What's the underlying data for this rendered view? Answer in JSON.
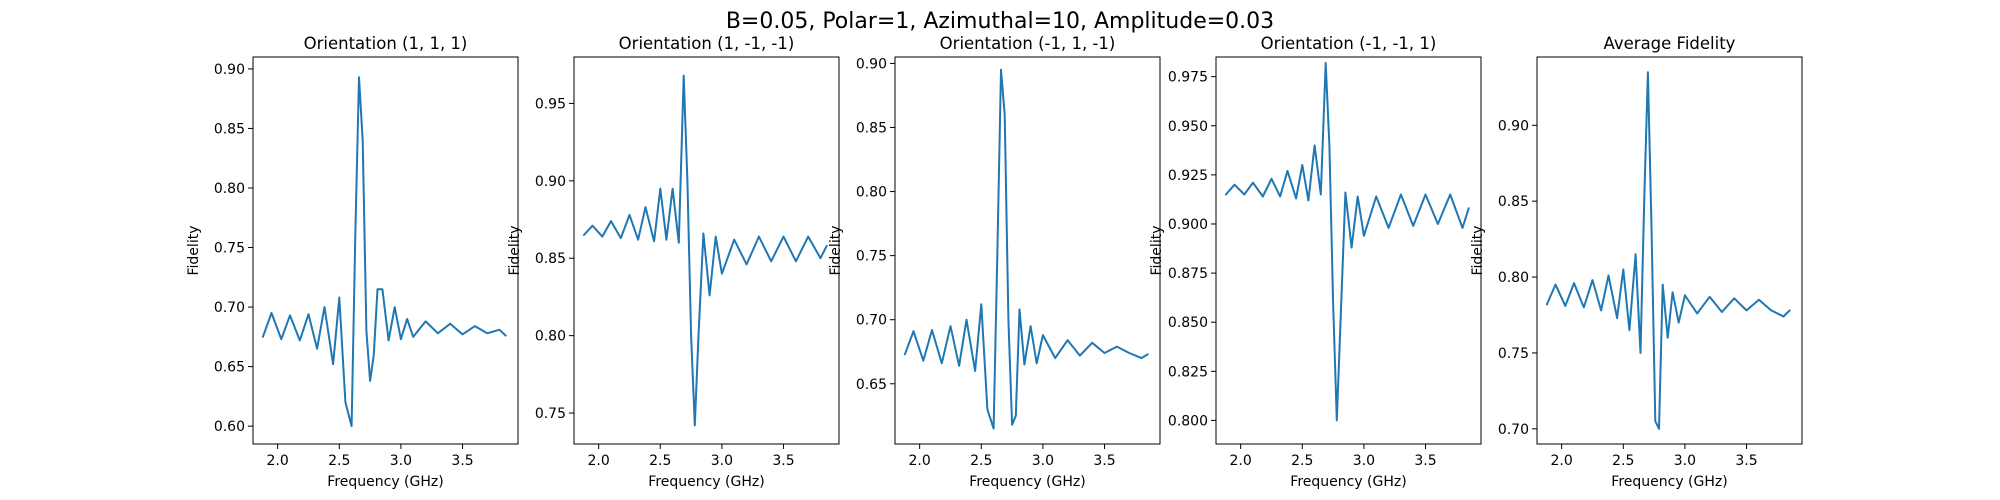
{
  "figure": {
    "suptitle": "B=0.05, Polar=1, Azimuthal=10, Amplitude=0.03"
  },
  "colors": {
    "line": "#1f77b4",
    "axis": "#000000",
    "background": "#ffffff"
  },
  "chart_data": [
    {
      "type": "line",
      "title": "Orientation (1, 1, 1)",
      "xlabel": "Frequency (GHz)",
      "ylabel": "Fidelity",
      "xlim": [
        1.8,
        3.95
      ],
      "ylim": [
        0.585,
        0.91
      ],
      "xticks": [
        2.0,
        2.5,
        3.0,
        3.5
      ],
      "xtick_labels": [
        "2.0",
        "2.5",
        "3.0",
        "3.5"
      ],
      "yticks": [
        0.6,
        0.65,
        0.7,
        0.75,
        0.8,
        0.85,
        0.9
      ],
      "ytick_labels": [
        "0.60",
        "0.65",
        "0.70",
        "0.75",
        "0.80",
        "0.85",
        "0.90"
      ],
      "grid": false,
      "x": [
        1.88,
        1.95,
        2.03,
        2.1,
        2.18,
        2.25,
        2.32,
        2.38,
        2.45,
        2.5,
        2.55,
        2.6,
        2.63,
        2.66,
        2.69,
        2.72,
        2.75,
        2.78,
        2.81,
        2.85,
        2.9,
        2.95,
        3.0,
        3.05,
        3.1,
        3.2,
        3.3,
        3.4,
        3.5,
        3.6,
        3.7,
        3.8,
        3.85
      ],
      "y": [
        0.675,
        0.695,
        0.673,
        0.693,
        0.672,
        0.694,
        0.665,
        0.7,
        0.652,
        0.708,
        0.62,
        0.6,
        0.76,
        0.893,
        0.84,
        0.68,
        0.638,
        0.66,
        0.715,
        0.715,
        0.672,
        0.7,
        0.673,
        0.69,
        0.675,
        0.688,
        0.678,
        0.686,
        0.677,
        0.684,
        0.678,
        0.681,
        0.676
      ]
    },
    {
      "type": "line",
      "title": "Orientation (1, -1, -1)",
      "xlabel": "Frequency (GHz)",
      "ylabel": "Fidelity",
      "xlim": [
        1.8,
        3.95
      ],
      "ylim": [
        0.73,
        0.98
      ],
      "xticks": [
        2.0,
        2.5,
        3.0,
        3.5
      ],
      "xtick_labels": [
        "2.0",
        "2.5",
        "3.0",
        "3.5"
      ],
      "yticks": [
        0.75,
        0.8,
        0.85,
        0.9,
        0.95
      ],
      "ytick_labels": [
        "0.75",
        "0.80",
        "0.85",
        "0.90",
        "0.95"
      ],
      "grid": false,
      "x": [
        1.88,
        1.95,
        2.03,
        2.1,
        2.18,
        2.25,
        2.32,
        2.38,
        2.45,
        2.5,
        2.55,
        2.6,
        2.65,
        2.69,
        2.72,
        2.75,
        2.78,
        2.81,
        2.85,
        2.9,
        2.95,
        3.0,
        3.1,
        3.2,
        3.3,
        3.4,
        3.5,
        3.6,
        3.7,
        3.8,
        3.85
      ],
      "y": [
        0.865,
        0.871,
        0.864,
        0.874,
        0.863,
        0.878,
        0.862,
        0.883,
        0.861,
        0.895,
        0.862,
        0.895,
        0.86,
        0.968,
        0.9,
        0.8,
        0.742,
        0.8,
        0.866,
        0.826,
        0.864,
        0.84,
        0.862,
        0.846,
        0.864,
        0.848,
        0.864,
        0.848,
        0.864,
        0.85,
        0.858
      ]
    },
    {
      "type": "line",
      "title": "Orientation (-1, 1, -1)",
      "xlabel": "Frequency (GHz)",
      "ylabel": "Fidelity",
      "xlim": [
        1.8,
        3.95
      ],
      "ylim": [
        0.603,
        0.905
      ],
      "xticks": [
        2.0,
        2.5,
        3.0,
        3.5
      ],
      "xtick_labels": [
        "2.0",
        "2.5",
        "3.0",
        "3.5"
      ],
      "yticks": [
        0.65,
        0.7,
        0.75,
        0.8,
        0.85,
        0.9
      ],
      "ytick_labels": [
        "0.65",
        "0.70",
        "0.75",
        "0.80",
        "0.85",
        "0.90"
      ],
      "grid": false,
      "x": [
        1.88,
        1.95,
        2.03,
        2.1,
        2.18,
        2.25,
        2.32,
        2.38,
        2.45,
        2.5,
        2.55,
        2.6,
        2.63,
        2.66,
        2.69,
        2.72,
        2.75,
        2.78,
        2.81,
        2.85,
        2.9,
        2.95,
        3.0,
        3.1,
        3.2,
        3.3,
        3.4,
        3.5,
        3.6,
        3.7,
        3.8,
        3.85
      ],
      "y": [
        0.673,
        0.691,
        0.668,
        0.692,
        0.666,
        0.695,
        0.664,
        0.7,
        0.66,
        0.712,
        0.63,
        0.615,
        0.75,
        0.895,
        0.86,
        0.7,
        0.618,
        0.625,
        0.708,
        0.665,
        0.695,
        0.666,
        0.688,
        0.67,
        0.684,
        0.672,
        0.682,
        0.674,
        0.679,
        0.674,
        0.67,
        0.673
      ]
    },
    {
      "type": "line",
      "title": "Orientation (-1, -1, 1)",
      "xlabel": "Frequency (GHz)",
      "ylabel": "Fidelity",
      "xlim": [
        1.8,
        3.95
      ],
      "ylim": [
        0.788,
        0.985
      ],
      "xticks": [
        2.0,
        2.5,
        3.0,
        3.5
      ],
      "xtick_labels": [
        "2.0",
        "2.5",
        "3.0",
        "3.5"
      ],
      "yticks": [
        0.8,
        0.825,
        0.85,
        0.875,
        0.9,
        0.925,
        0.95,
        0.975
      ],
      "ytick_labels": [
        "0.800",
        "0.825",
        "0.850",
        "0.875",
        "0.900",
        "0.925",
        "0.950",
        "0.975"
      ],
      "grid": false,
      "x": [
        1.88,
        1.95,
        2.03,
        2.1,
        2.18,
        2.25,
        2.32,
        2.38,
        2.45,
        2.5,
        2.55,
        2.6,
        2.65,
        2.69,
        2.72,
        2.75,
        2.78,
        2.81,
        2.85,
        2.9,
        2.95,
        3.0,
        3.1,
        3.2,
        3.3,
        3.4,
        3.5,
        3.6,
        3.7,
        3.8,
        3.85
      ],
      "y": [
        0.915,
        0.92,
        0.915,
        0.921,
        0.914,
        0.923,
        0.914,
        0.927,
        0.913,
        0.93,
        0.912,
        0.94,
        0.915,
        0.982,
        0.94,
        0.86,
        0.8,
        0.85,
        0.916,
        0.888,
        0.914,
        0.894,
        0.914,
        0.898,
        0.915,
        0.899,
        0.915,
        0.9,
        0.915,
        0.898,
        0.908
      ]
    },
    {
      "type": "line",
      "title": "Average Fidelity",
      "xlabel": "Frequency (GHz)",
      "ylabel": "Fidelity",
      "xlim": [
        1.8,
        3.95
      ],
      "ylim": [
        0.69,
        0.945
      ],
      "xticks": [
        2.0,
        2.5,
        3.0,
        3.5
      ],
      "xtick_labels": [
        "2.0",
        "2.5",
        "3.0",
        "3.5"
      ],
      "yticks": [
        0.7,
        0.75,
        0.8,
        0.85,
        0.9
      ],
      "ytick_labels": [
        "0.70",
        "0.75",
        "0.80",
        "0.85",
        "0.90"
      ],
      "grid": false,
      "x": [
        1.88,
        1.95,
        2.03,
        2.1,
        2.18,
        2.25,
        2.32,
        2.38,
        2.45,
        2.5,
        2.55,
        2.6,
        2.64,
        2.67,
        2.7,
        2.73,
        2.76,
        2.79,
        2.82,
        2.86,
        2.9,
        2.95,
        3.0,
        3.1,
        3.2,
        3.3,
        3.4,
        3.5,
        3.6,
        3.7,
        3.8,
        3.85
      ],
      "y": [
        0.782,
        0.795,
        0.781,
        0.796,
        0.78,
        0.798,
        0.778,
        0.801,
        0.773,
        0.805,
        0.765,
        0.815,
        0.75,
        0.85,
        0.935,
        0.83,
        0.705,
        0.7,
        0.795,
        0.76,
        0.79,
        0.77,
        0.788,
        0.776,
        0.787,
        0.777,
        0.786,
        0.778,
        0.785,
        0.778,
        0.774,
        0.778
      ]
    }
  ]
}
